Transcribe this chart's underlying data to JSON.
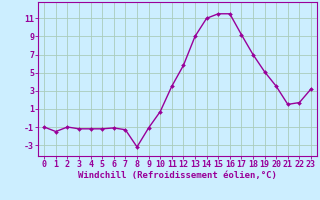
{
  "x": [
    0,
    1,
    2,
    3,
    4,
    5,
    6,
    7,
    8,
    9,
    10,
    11,
    12,
    13,
    14,
    15,
    16,
    17,
    18,
    19,
    20,
    21,
    22,
    23
  ],
  "y": [
    -1,
    -1.5,
    -1,
    -1.2,
    -1.2,
    -1.2,
    -1.1,
    -1.3,
    -3.2,
    -1.1,
    0.7,
    3.5,
    5.8,
    9.0,
    11.0,
    11.5,
    11.5,
    9.2,
    7.0,
    5.1,
    3.5,
    1.5,
    1.7,
    3.2
  ],
  "line_color": "#990099",
  "marker": "D",
  "markersize": 2.0,
  "linewidth": 1.0,
  "bg_color": "#cceeff",
  "grid_color": "#aaccbb",
  "xlabel": "Windchill (Refroidissement éolien,°C)",
  "xlabel_fontsize": 6.5,
  "tick_fontsize": 6.0,
  "yticks": [
    -3,
    -1,
    1,
    3,
    5,
    7,
    9,
    11
  ],
  "ylim": [
    -4.2,
    12.8
  ],
  "xlim": [
    -0.5,
    23.5
  ]
}
